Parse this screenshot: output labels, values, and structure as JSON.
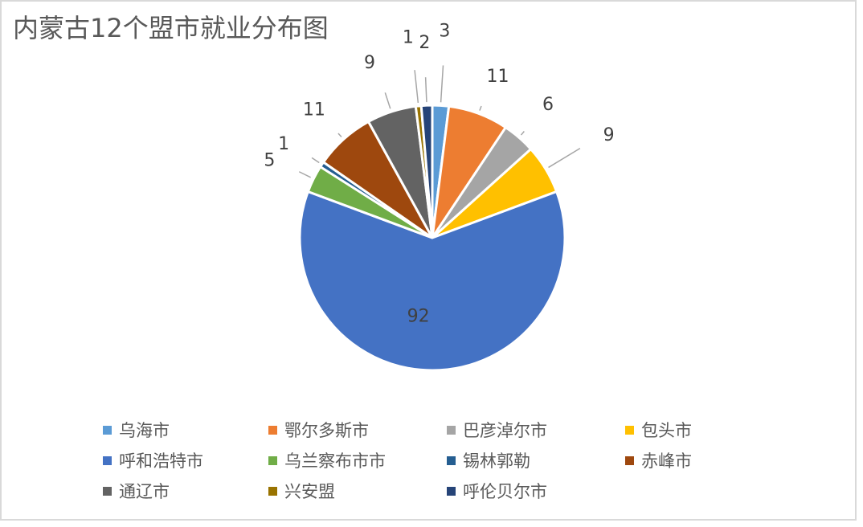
{
  "chart_data": {
    "type": "pie",
    "title": "内蒙古12个盟市就业分布图",
    "categories": [
      "乌海市",
      "鄂尔多斯市",
      "巴彦淖尔市",
      "包头市",
      "呼和浩特市",
      "乌兰察布市市",
      "锡林郭勒",
      "赤峰市",
      "通辽市",
      "兴安盟",
      "呼伦贝尔市"
    ],
    "values": [
      3,
      11,
      6,
      9,
      92,
      5,
      1,
      11,
      9,
      1,
      2
    ],
    "colors": [
      "#5b9bd5",
      "#ed7d31",
      "#a5a5a5",
      "#ffc000",
      "#4472c4",
      "#70ad47",
      "#255e91",
      "#9e480e",
      "#636363",
      "#997300",
      "#264478"
    ],
    "legend_position": "bottom",
    "start_angle": 0,
    "direction": "clockwise"
  }
}
